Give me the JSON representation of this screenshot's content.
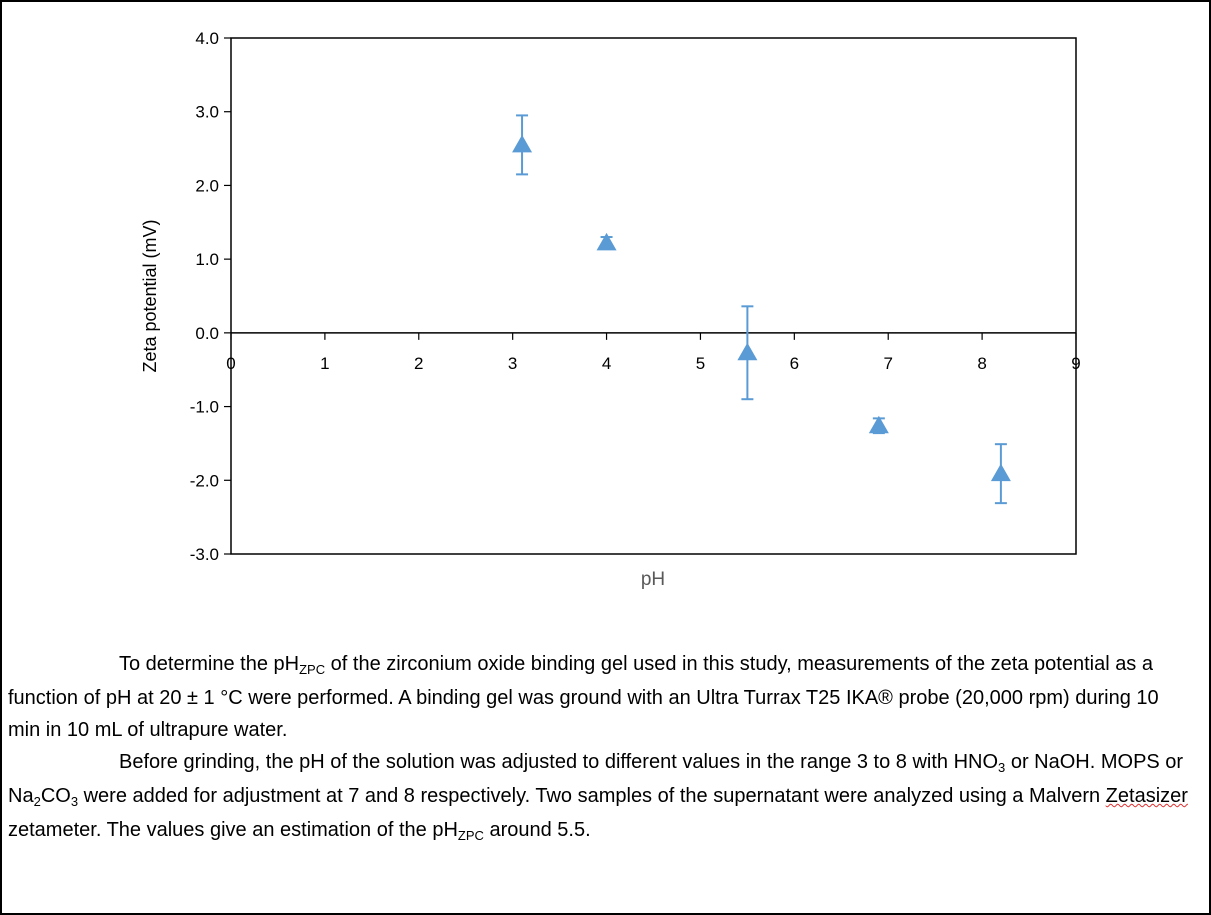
{
  "chart_data": {
    "type": "scatter",
    "title": "",
    "xlabel": "pH",
    "ylabel": "Zeta potential (mV)",
    "xlim": [
      0,
      9
    ],
    "ylim": [
      -3.0,
      4.0
    ],
    "x_ticks": [
      "0",
      "1",
      "2",
      "3",
      "4",
      "5",
      "6",
      "7",
      "8",
      "9"
    ],
    "y_ticks": [
      "4.0",
      "3.0",
      "2.0",
      "1.0",
      "0.0",
      "-1.0",
      "-2.0",
      "-3.0"
    ],
    "grid": false,
    "marker": "triangle",
    "series_color": "#5b9bd5",
    "points": [
      {
        "x": 3.1,
        "y": 2.55,
        "err": 0.4
      },
      {
        "x": 4.0,
        "y": 1.22,
        "err": 0.08
      },
      {
        "x": 5.5,
        "y": -0.27,
        "err": 0.63
      },
      {
        "x": 6.9,
        "y": -1.26,
        "err": 0.1
      },
      {
        "x": 8.2,
        "y": -1.91,
        "err": 0.4
      }
    ]
  },
  "caption": {
    "p1": {
      "a": "To determine the pH",
      "sub1": "ZPC",
      "b": " of the zirconium oxide binding gel used in this study, measurements of the zeta potential as a function of pH at 20 ± 1 °C were performed. A binding gel was ground with an Ultra Turrax T25 IKA® probe (20,000 rpm) during 10 min in 10 mL of ultrapure water."
    },
    "p2": {
      "a": "Before grinding, the pH of the solution was adjusted to different values in the range 3 to 8 with HNO",
      "sub1": "3",
      "b": " or NaOH. MOPS or Na",
      "sub2": "2",
      "c": "CO",
      "sub3": "3",
      "d": " were added for adjustment at 7 and 8 respectively. Two samples of the supernatant were analyzed using a Malvern ",
      "squiggle": "Zetasizer",
      "e": " zetameter. The values give an estimation of the pH",
      "sub4": "ZPC",
      "f": " around 5.5."
    }
  }
}
